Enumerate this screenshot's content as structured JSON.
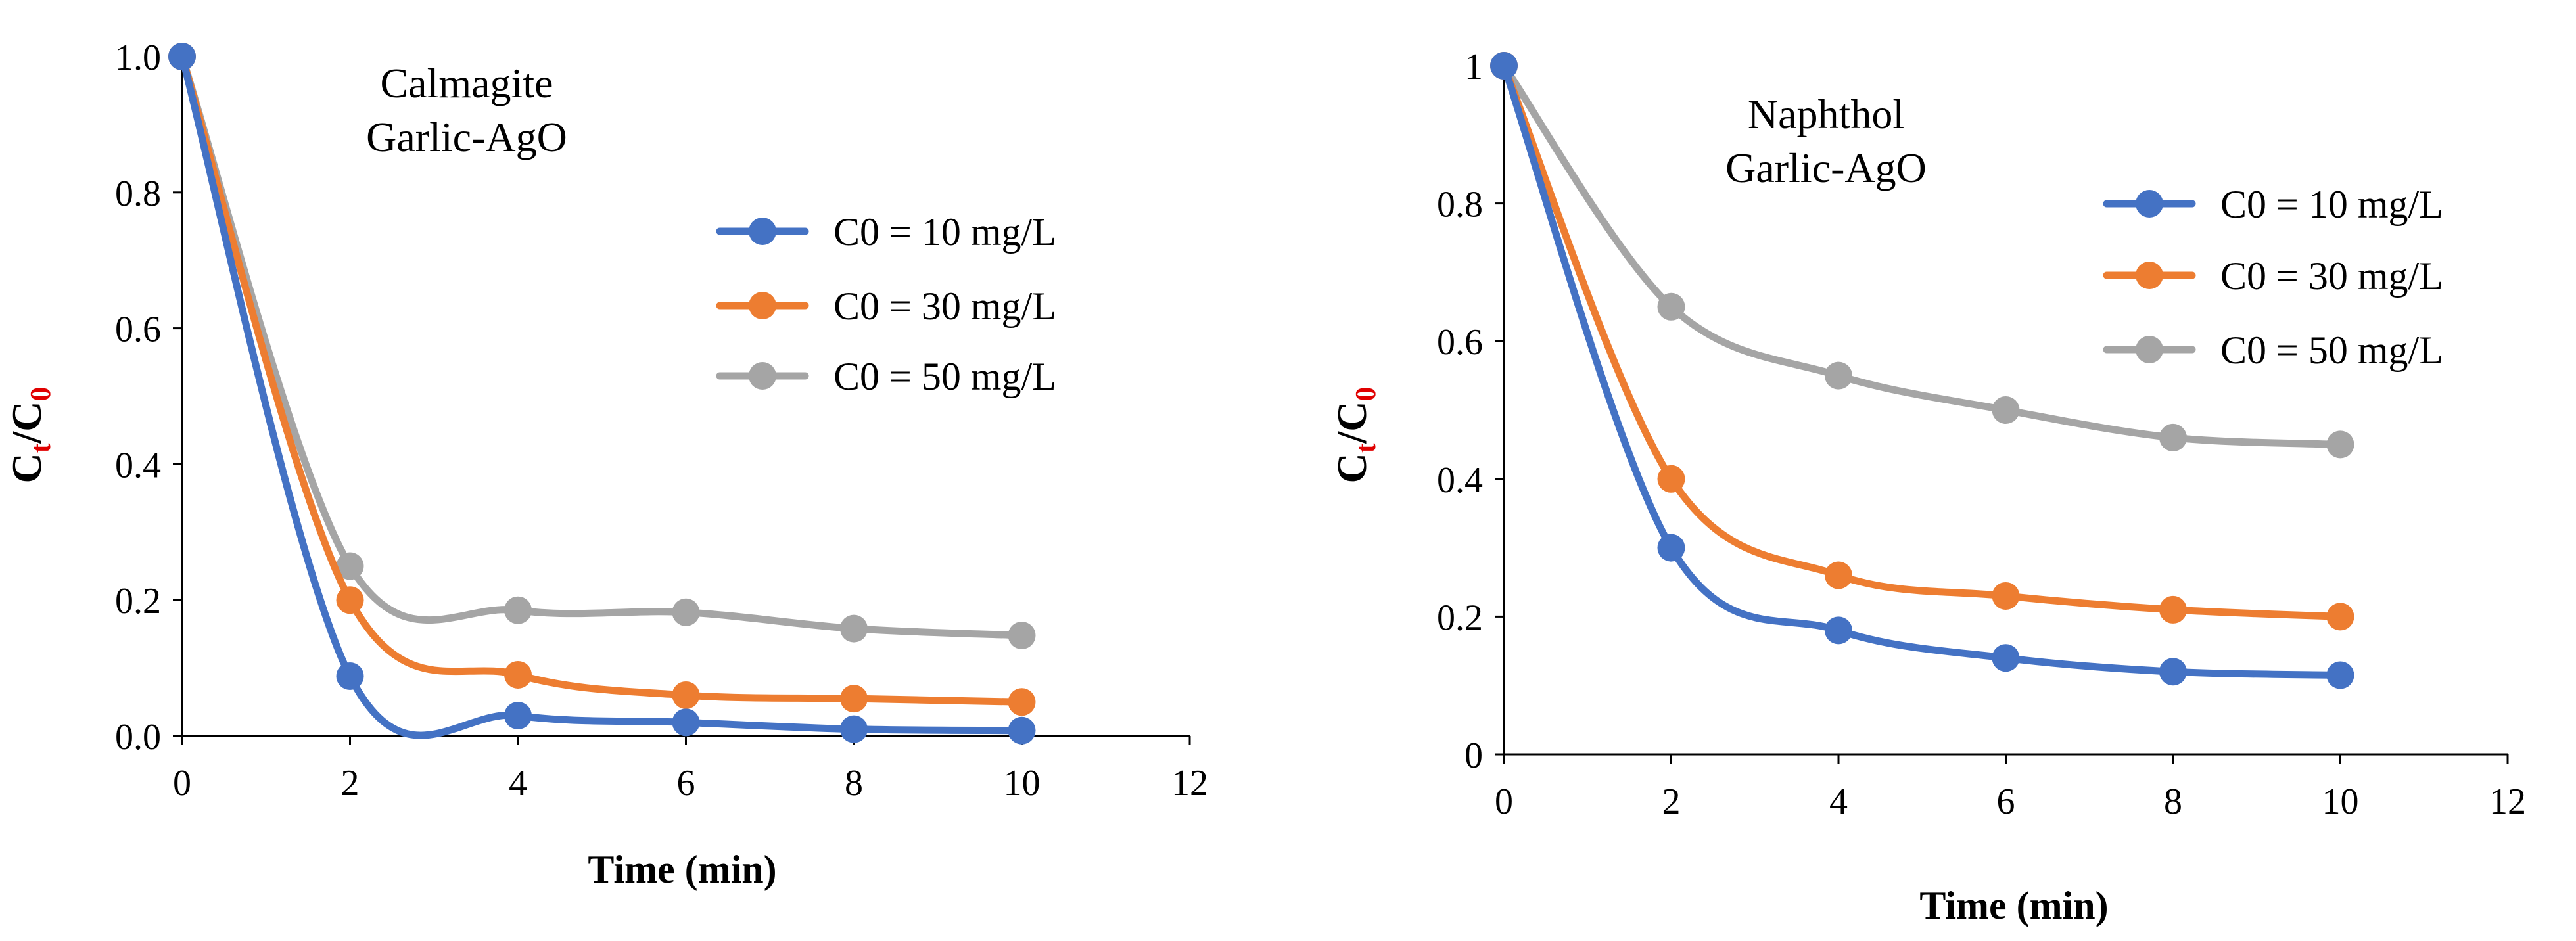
{
  "chart_data": [
    {
      "type": "line",
      "smooth": true,
      "x": [
        0,
        2,
        4,
        6,
        8,
        10
      ],
      "series": [
        {
          "name": "C0 = 10 mg/L",
          "values": [
            1.0,
            0.088,
            0.03,
            0.02,
            0.01,
            0.008
          ],
          "color": "#4472c4"
        },
        {
          "name": "C0 = 30 mg/L",
          "values": [
            1.0,
            0.2,
            0.09,
            0.06,
            0.055,
            0.05
          ],
          "color": "#ed7d31"
        },
        {
          "name": "C0 = 50 mg/L",
          "values": [
            1.0,
            0.25,
            0.185,
            0.182,
            0.158,
            0.148
          ],
          "color": "#a5a5a5"
        }
      ],
      "xlabel": "Time (min)",
      "ylabel": {
        "main": "C",
        "sub1": "t",
        "slash": "/C",
        "sub2": "0"
      },
      "xlim": [
        0,
        12
      ],
      "ylim": [
        0,
        1.0
      ],
      "xticks": [
        "0",
        "2",
        "4",
        "6",
        "8",
        "10",
        "12"
      ],
      "yticks": [
        "0.0",
        "0.2",
        "0.4",
        "0.6",
        "0.8",
        "1.0"
      ],
      "annotation": [
        "Calmagite",
        "Garlic-AgO"
      ],
      "legend_position": "right"
    },
    {
      "type": "line",
      "smooth": true,
      "x": [
        0,
        2,
        4,
        6,
        8,
        10
      ],
      "series": [
        {
          "name": "C0 = 10 mg/L",
          "values": [
            1.0,
            0.3,
            0.18,
            0.14,
            0.12,
            0.115
          ],
          "color": "#4472c4"
        },
        {
          "name": "C0 = 30 mg/L",
          "values": [
            1.0,
            0.4,
            0.26,
            0.23,
            0.21,
            0.2
          ],
          "color": "#ed7d31"
        },
        {
          "name": "C0 = 50 mg/L",
          "values": [
            1.0,
            0.65,
            0.55,
            0.5,
            0.46,
            0.45
          ],
          "color": "#a5a5a5"
        }
      ],
      "xlabel": "Time (min)",
      "ylabel": {
        "main": "C",
        "sub1": "t",
        "slash": "/C",
        "sub2": "0"
      },
      "xlim": [
        0,
        12
      ],
      "ylim": [
        0,
        1.0
      ],
      "xticks": [
        "0",
        "2",
        "4",
        "6",
        "8",
        "10",
        "12"
      ],
      "yticks": [
        "0",
        "0.2",
        "0.4",
        "0.6",
        "0.8",
        "1"
      ],
      "annotation": [
        "Naphthol",
        "Garlic-AgO"
      ],
      "legend_position": "right"
    }
  ],
  "colors": {
    "subscript_red": "#e00000"
  }
}
